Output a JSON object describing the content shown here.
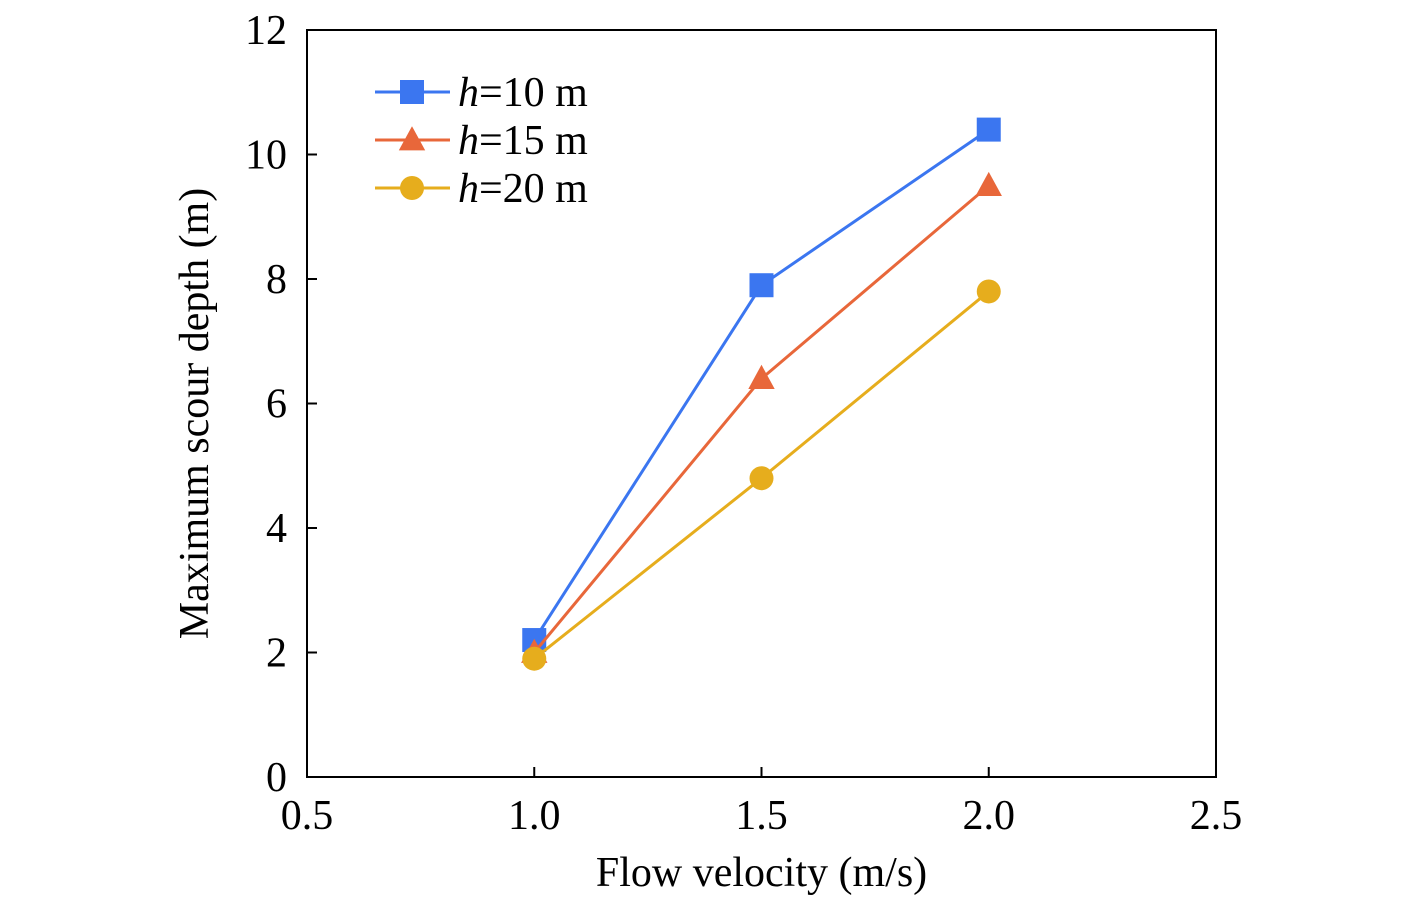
{
  "chart_data": {
    "type": "line",
    "xlabel": "Flow velocity (m/s)",
    "ylabel": "Maximum scour depth (m)",
    "xlim": [
      0.5,
      2.5
    ],
    "ylim": [
      0,
      12
    ],
    "xticks": [
      "0.5",
      "1.0",
      "1.5",
      "2.0",
      "2.5"
    ],
    "yticks": [
      "0",
      "2",
      "4",
      "6",
      "8",
      "10",
      "12"
    ],
    "grid": false,
    "legend_position": "top-left",
    "x": [
      1.0,
      1.5,
      2.0
    ],
    "series": [
      {
        "name_var": "h",
        "name_rest": "=10 m",
        "marker": "square",
        "color": "#3b76f0",
        "values": [
          2.2,
          7.9,
          10.4
        ]
      },
      {
        "name_var": "h",
        "name_rest": "=15 m",
        "marker": "triangle",
        "color": "#e8673a",
        "values": [
          2.0,
          6.4,
          9.5
        ]
      },
      {
        "name_var": "h",
        "name_rest": "=20 m",
        "marker": "circle",
        "color": "#e6ad1d",
        "values": [
          1.9,
          4.8,
          7.8
        ]
      }
    ]
  }
}
